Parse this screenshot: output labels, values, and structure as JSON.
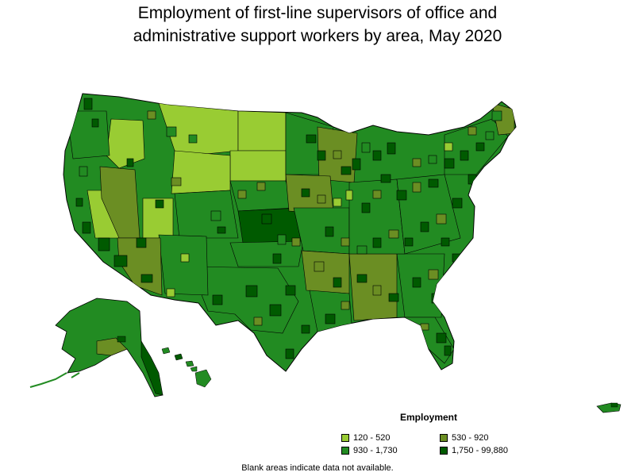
{
  "title_line1": "Employment of first-line supervisors of office and",
  "title_line2": "administrative support workers by area, May 2020",
  "legend": {
    "title": "Employment",
    "items": [
      {
        "label": "120 - 520",
        "color": "#99cc33"
      },
      {
        "label": "530 - 920",
        "color": "#6b8e23"
      },
      {
        "label": "930 - 1,730",
        "color": "#228b22"
      },
      {
        "label": "1,750 - 99,880",
        "color": "#005a00"
      }
    ]
  },
  "footnote": "Blank areas indicate data not available.",
  "colors": {
    "border": "#000000",
    "level1": "#99cc33",
    "level2": "#6b8e23",
    "level3": "#228b22",
    "level4": "#005a00"
  }
}
